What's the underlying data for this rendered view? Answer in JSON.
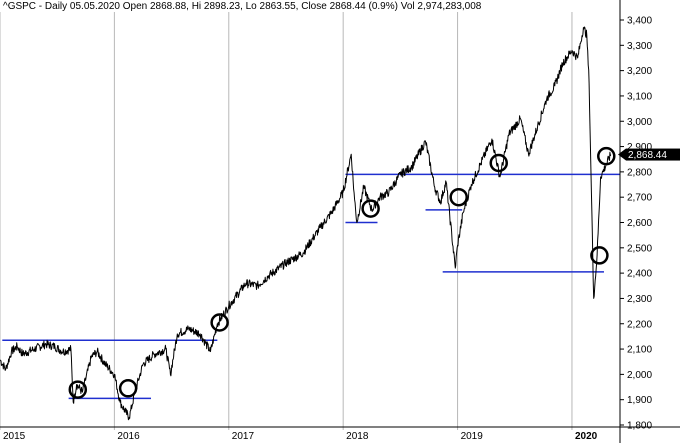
{
  "header": {
    "text": "^GSPC - Daily 05.05.2020 Open 2868.88, Hi 2898.23, Lo 2863.55, Close 2868.44 (0.9%) Vol 2,974,283,008"
  },
  "last_price_label": "2,868.44",
  "colors": {
    "price_line": "#000000",
    "support_lines": "#1f2fcf",
    "grid": "#b8b8b8",
    "price_tag_bg": "#000000",
    "price_tag_text": "#ffffff",
    "background": "#ffffff"
  },
  "chart_data": {
    "type": "line",
    "title": "^GSPC",
    "subtitle": "Daily 05.05.2020 Open 2868.88, Hi 2898.23, Lo 2863.55, Close 2868.44 (0.9%) Vol 2,974,283,008",
    "ylim": [
      1800,
      3400
    ],
    "xlim": [
      2015.0,
      2020.42
    ],
    "y_ticks": [
      "1,800",
      "1,900",
      "2,000",
      "2,100",
      "2,200",
      "2,300",
      "2,400",
      "2,500",
      "2,600",
      "2,700",
      "2,800",
      "2,900",
      "3,000",
      "3,100",
      "3,200",
      "3,300",
      "3,400"
    ],
    "y_tick_values": [
      1800,
      1900,
      2000,
      2100,
      2200,
      2300,
      2400,
      2500,
      2600,
      2700,
      2800,
      2900,
      3000,
      3100,
      3200,
      3300,
      3400
    ],
    "x_ticks": [
      "2015",
      "2016",
      "2017",
      "2018",
      "2019",
      "2020"
    ],
    "x_tick_values": [
      2015.0,
      2016.0,
      2017.0,
      2018.0,
      2019.0,
      2020.0
    ],
    "grid": "vertical",
    "series": [
      {
        "x": [
          2015.0,
          2015.05,
          2015.1,
          2015.15,
          2015.2,
          2015.3,
          2015.4,
          2015.48,
          2015.55,
          2015.62,
          2015.64,
          2015.67,
          2015.72,
          2015.8,
          2015.85,
          2015.92,
          2016.0,
          2016.05,
          2016.1,
          2016.13,
          2016.18,
          2016.25,
          2016.35,
          2016.45,
          2016.49,
          2016.55,
          2016.65,
          2016.75,
          2016.84,
          2016.9,
          2017.0,
          2017.15,
          2017.25,
          2017.35,
          2017.5,
          2017.65,
          2017.8,
          2017.9,
          2018.0,
          2018.07,
          2018.1,
          2018.12,
          2018.18,
          2018.25,
          2018.32,
          2018.4,
          2018.5,
          2018.6,
          2018.72,
          2018.8,
          2018.85,
          2018.9,
          2018.98,
          2019.0,
          2019.05,
          2019.12,
          2019.2,
          2019.3,
          2019.37,
          2019.45,
          2019.55,
          2019.62,
          2019.7,
          2019.78,
          2019.85,
          2019.92,
          2020.0,
          2020.05,
          2020.1,
          2020.13,
          2020.15,
          2020.17,
          2020.19,
          2020.22,
          2020.25,
          2020.3,
          2020.34
        ],
        "values": [
          2058,
          2020,
          2090,
          2110,
          2080,
          2100,
          2120,
          2110,
          2090,
          2100,
          1890,
          1960,
          1930,
          2070,
          2090,
          2040,
          2000,
          1890,
          1850,
          1830,
          1930,
          2040,
          2080,
          2100,
          2000,
          2160,
          2180,
          2160,
          2090,
          2200,
          2270,
          2360,
          2350,
          2390,
          2440,
          2480,
          2580,
          2640,
          2720,
          2870,
          2690,
          2600,
          2740,
          2650,
          2700,
          2720,
          2790,
          2820,
          2920,
          2740,
          2680,
          2760,
          2420,
          2510,
          2640,
          2750,
          2830,
          2930,
          2780,
          2950,
          3010,
          2870,
          2980,
          3090,
          3140,
          3230,
          3280,
          3250,
          3370,
          3340,
          3150,
          2720,
          2300,
          2470,
          2780,
          2830,
          2868.44
        ]
      }
    ],
    "support_levels": [
      {
        "y": 2135,
        "x_start": 2015.02,
        "x_end": 2016.9
      },
      {
        "y": 1905,
        "x_start": 2015.6,
        "x_end": 2016.32
      },
      {
        "y": 2600,
        "x_start": 2018.02,
        "x_end": 2018.3
      },
      {
        "y": 2790,
        "x_start": 2018.02,
        "x_end": 2020.42
      },
      {
        "y": 2650,
        "x_start": 2018.72,
        "x_end": 2019.04
      },
      {
        "y": 2405,
        "x_start": 2018.87,
        "x_end": 2020.28
      }
    ],
    "highlight_points": [
      {
        "x": 2015.68,
        "y": 1940
      },
      {
        "x": 2016.12,
        "y": 1945
      },
      {
        "x": 2016.92,
        "y": 2205
      },
      {
        "x": 2018.24,
        "y": 2655
      },
      {
        "x": 2019.01,
        "y": 2700
      },
      {
        "x": 2019.36,
        "y": 2835
      },
      {
        "x": 2020.24,
        "y": 2470
      },
      {
        "x": 2020.3,
        "y": 2862
      }
    ]
  }
}
